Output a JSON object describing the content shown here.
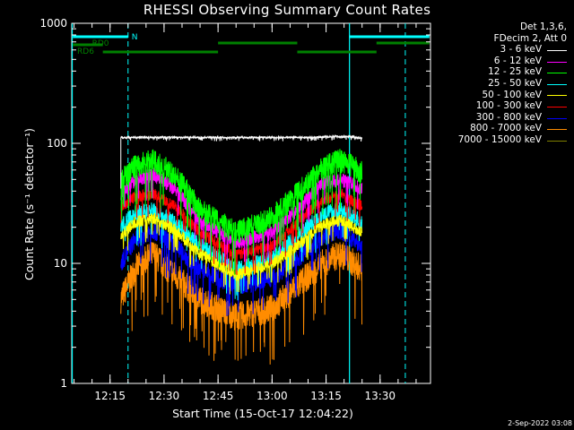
{
  "title": "RHESSI Observing Summary Count Rates",
  "timestamp": "2-Sep-2022 03:08",
  "colors": {
    "background": "#000000",
    "axes": "#ffffff",
    "attenuator": "#00ffff",
    "decimation": "#008000",
    "flare_marker": "#00ffff"
  },
  "chart_data": {
    "type": "line",
    "xlabel": "Start Time (15-Oct-17 12:04:22)",
    "ylabel": "Count Rate (s⁻¹ detector⁻¹)",
    "y_scale": "log",
    "ylim": [
      1,
      1000
    ],
    "xlim": [
      "12:04:22",
      "13:44"
    ],
    "x_ticks": [
      "12:15",
      "12:30",
      "12:45",
      "13:00",
      "13:15",
      "13:30"
    ],
    "y_ticks": [
      "1",
      "10",
      "100",
      "1000"
    ],
    "grid": false,
    "legend_placement": "right",
    "legend_header": [
      "Det 1,3,6,",
      "FDecim 2, Att 0"
    ],
    "series": [
      {
        "name": "3 - 6 keV",
        "color": "#ffffff",
        "x": [
          "12:18",
          "12:22",
          "12:30",
          "12:40",
          "12:50",
          "13:00",
          "13:10",
          "13:17",
          "13:22",
          "13:25"
        ],
        "values": [
          112,
          112,
          112,
          112,
          112,
          112,
          112,
          114,
          114,
          110
        ]
      },
      {
        "name": "6 - 12 keV",
        "color": "#ff00ff",
        "x": [
          "12:18",
          "12:22",
          "12:27",
          "12:33",
          "12:40",
          "12:50",
          "13:00",
          "13:07",
          "13:14",
          "13:19",
          "13:25"
        ],
        "values": [
          36,
          50,
          55,
          42,
          22,
          15,
          18,
          28,
          46,
          50,
          42
        ]
      },
      {
        "name": "12 - 25 keV",
        "color": "#00ff00",
        "x": [
          "12:18",
          "12:22",
          "12:27",
          "12:33",
          "12:40",
          "12:50",
          "13:00",
          "13:07",
          "13:14",
          "13:19",
          "13:25"
        ],
        "values": [
          48,
          65,
          72,
          55,
          28,
          18,
          24,
          38,
          62,
          72,
          58
        ]
      },
      {
        "name": "25 - 50 keV",
        "color": "#00ffff",
        "x": [
          "12:18",
          "12:22",
          "12:27",
          "12:33",
          "12:40",
          "12:50",
          "13:00",
          "13:07",
          "13:14",
          "13:19",
          "13:25"
        ],
        "values": [
          20,
          26,
          28,
          22,
          14,
          9,
          11,
          17,
          26,
          28,
          22
        ]
      },
      {
        "name": "50 - 100 keV",
        "color": "#ffff00",
        "x": [
          "12:18",
          "12:22",
          "12:27",
          "12:33",
          "12:40",
          "12:50",
          "13:00",
          "13:07",
          "13:14",
          "13:19",
          "13:25"
        ],
        "values": [
          17,
          22,
          24,
          19,
          12,
          8,
          10,
          14,
          21,
          23,
          18
        ]
      },
      {
        "name": "100 - 300 keV",
        "color": "#ff0000",
        "x": [
          "12:18",
          "12:22",
          "12:27",
          "12:33",
          "12:40",
          "12:50",
          "13:00",
          "13:07",
          "13:14",
          "13:19",
          "13:25"
        ],
        "values": [
          30,
          36,
          38,
          30,
          18,
          12,
          14,
          22,
          34,
          38,
          30
        ]
      },
      {
        "name": "300 - 800 keV",
        "color": "#0000ff",
        "x": [
          "12:18",
          "12:22",
          "12:27",
          "12:33",
          "12:40",
          "12:50",
          "13:00",
          "13:07",
          "13:14",
          "13:19",
          "13:25"
        ],
        "values": [
          10,
          16,
          19,
          14,
          9,
          6.5,
          7.5,
          11,
          17,
          19,
          14
        ]
      },
      {
        "name": "800 - 7000 keV",
        "color": "#ff8c00",
        "x": [
          "12:18",
          "12:22",
          "12:27",
          "12:33",
          "12:40",
          "12:50",
          "13:00",
          "13:07",
          "13:14",
          "13:19",
          "13:25"
        ],
        "values": [
          5,
          9,
          12,
          8,
          5,
          3.6,
          4.2,
          6.5,
          10,
          12,
          9
        ]
      },
      {
        "name": "7000 - 15000 keV",
        "color": "#808000",
        "x": [],
        "values": []
      }
    ],
    "annotations": {
      "attenuator_label": "N",
      "decimation_labels": [
        "RD0",
        "RD6"
      ],
      "spacecraft_night_boundaries": [
        "12:04:30",
        "13:21:30"
      ],
      "saa_boundaries": [
        "12:20",
        "13:37"
      ]
    }
  }
}
